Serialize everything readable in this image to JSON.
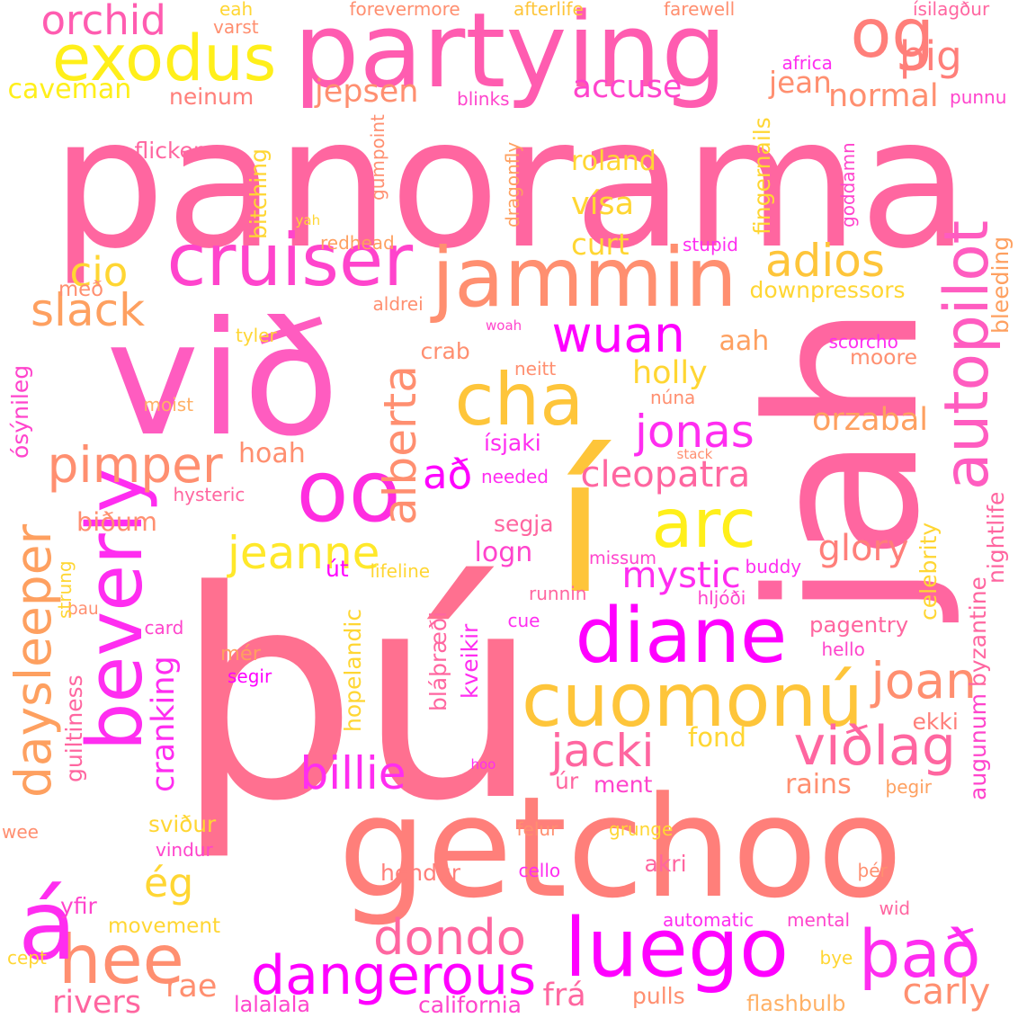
{
  "palette": {
    "pink": "#ff66a0",
    "salmon": "#ff7f7a",
    "coral": "#ff8f70",
    "orange": "#fea060",
    "amber": "#fec53a",
    "gold": "#ffd633",
    "yellow": "#ffef1a",
    "magenta": "#ff2df0",
    "violet": "#ff00ff",
    "hotpink": "#ff4dcc",
    "peach": "#ffb065"
  },
  "words": [
    {
      "text": "panorama",
      "color": "#ff66a0",
      "v": false
    },
    {
      "text": "þú",
      "color": "#ff7090",
      "v": false
    },
    {
      "text": "getchoo",
      "color": "#ff7f7a",
      "v": false
    },
    {
      "text": "við",
      "color": "#ff5cc0",
      "v": false
    },
    {
      "text": "jah",
      "color": "#ff66a0",
      "v": true
    },
    {
      "text": "partying",
      "color": "#ff5cb0",
      "v": false
    },
    {
      "text": "í",
      "color": "#fec53a",
      "v": false
    },
    {
      "text": "og",
      "color": "#ff7f7a",
      "v": false
    },
    {
      "text": "jammin",
      "color": "#ff8f70",
      "v": false
    },
    {
      "text": "exodus",
      "color": "#ffef1a",
      "v": false
    },
    {
      "text": "cruiser",
      "color": "#ff44cc",
      "v": false
    },
    {
      "text": "oo",
      "color": "#ff2de0",
      "v": false
    },
    {
      "text": "beverly",
      "color": "#ff2df0",
      "v": true
    },
    {
      "text": "cha",
      "color": "#fec53a",
      "v": false
    },
    {
      "text": "arc",
      "color": "#ffef1a",
      "v": false
    },
    {
      "text": "diane",
      "color": "#ff00ff",
      "v": false
    },
    {
      "text": "cuomonú",
      "color": "#fec53a",
      "v": false
    },
    {
      "text": "luego",
      "color": "#ff00ff",
      "v": false
    },
    {
      "text": "autopilot",
      "color": "#ff5cc0",
      "v": true
    },
    {
      "text": "hee",
      "color": "#ff8f70",
      "v": false
    },
    {
      "text": "á",
      "color": "#ff2df0",
      "v": false
    },
    {
      "text": "það",
      "color": "#ff2df0",
      "v": false
    },
    {
      "text": "dangerous",
      "color": "#ff00ff",
      "v": false
    },
    {
      "text": "dondo",
      "color": "#ff66a0",
      "v": false
    },
    {
      "text": "viðlag",
      "color": "#ff66a0",
      "v": false
    },
    {
      "text": "billie",
      "color": "#ff2df0",
      "v": false
    },
    {
      "text": "jacki",
      "color": "#ff66a0",
      "v": false
    },
    {
      "text": "joan",
      "color": "#ff8f70",
      "v": false
    },
    {
      "text": "pimper",
      "color": "#ff8f70",
      "v": false
    },
    {
      "text": "jonas",
      "color": "#ff2df0",
      "v": false
    },
    {
      "text": "wuan",
      "color": "#ff00ff",
      "v": false
    },
    {
      "text": "jeanne",
      "color": "#ffe82a",
      "v": false
    },
    {
      "text": "alberta",
      "color": "#ff8f70",
      "v": true
    },
    {
      "text": "adios",
      "color": "#fec53a",
      "v": false
    },
    {
      "text": "daysleeper",
      "color": "#fea060",
      "v": true
    },
    {
      "text": "slack",
      "color": "#fea060",
      "v": false
    },
    {
      "text": "orchid",
      "color": "#ff5cb0",
      "v": false
    },
    {
      "text": "cio",
      "color": "#ffd633",
      "v": false
    },
    {
      "text": "þig",
      "color": "#ff7f7a",
      "v": false
    },
    {
      "text": "caveman",
      "color": "#ffef1a",
      "v": false
    },
    {
      "text": "jepsen",
      "color": "#ff8f70",
      "v": false
    },
    {
      "text": "accuse",
      "color": "#ff44cc",
      "v": false
    },
    {
      "text": "jean",
      "color": "#ff8f70",
      "v": false
    },
    {
      "text": "normal",
      "color": "#ff8f70",
      "v": false
    },
    {
      "text": "neinum",
      "color": "#ff7f7a",
      "v": false
    },
    {
      "text": "blinks",
      "color": "#ff44cc",
      "v": false
    },
    {
      "text": "punnu",
      "color": "#ff44cc",
      "v": false
    },
    {
      "text": "eah",
      "color": "#ffd633",
      "v": false
    },
    {
      "text": "varst",
      "color": "#ff8f70",
      "v": false
    },
    {
      "text": "forevermore",
      "color": "#ff8f70",
      "v": false
    },
    {
      "text": "afterlife",
      "color": "#fec53a",
      "v": false
    },
    {
      "text": "farewell",
      "color": "#ff8f70",
      "v": false
    },
    {
      "text": "ísilagður",
      "color": "#ff66a0",
      "v": false
    },
    {
      "text": "africa",
      "color": "#ff2df0",
      "v": false
    },
    {
      "text": "flicker",
      "color": "#ff66a0",
      "v": false
    },
    {
      "text": "roland",
      "color": "#ffd633",
      "v": false
    },
    {
      "text": "vísa",
      "color": "#ffd633",
      "v": false
    },
    {
      "text": "curt",
      "color": "#ffd633",
      "v": false
    },
    {
      "text": "stupid",
      "color": "#ff2df0",
      "v": false
    },
    {
      "text": "redhead",
      "color": "#fea060",
      "v": false
    },
    {
      "text": "yah",
      "color": "#ffd633",
      "v": false
    },
    {
      "text": "downpressors",
      "color": "#ffd633",
      "v": false
    },
    {
      "text": "með",
      "color": "#ff8f70",
      "v": false
    },
    {
      "text": "aldrei",
      "color": "#ff8f70",
      "v": false
    },
    {
      "text": "tyler",
      "color": "#ffd633",
      "v": false
    },
    {
      "text": "woah",
      "color": "#ff44cc",
      "v": false
    },
    {
      "text": "crab",
      "color": "#ff8f70",
      "v": false
    },
    {
      "text": "aah",
      "color": "#fea060",
      "v": false
    },
    {
      "text": "scorcho",
      "color": "#ff2df0",
      "v": false
    },
    {
      "text": "moore",
      "color": "#ff8f70",
      "v": false
    },
    {
      "text": "holly",
      "color": "#ffd633",
      "v": false
    },
    {
      "text": "neitt",
      "color": "#ff8f70",
      "v": false
    },
    {
      "text": "moist",
      "color": "#ffb065",
      "v": false
    },
    {
      "text": "núna",
      "color": "#ff8f70",
      "v": false
    },
    {
      "text": "orzabal",
      "color": "#fea060",
      "v": false
    },
    {
      "text": "ísjaki",
      "color": "#ff2df0",
      "v": false
    },
    {
      "text": "hoah",
      "color": "#ff8f70",
      "v": false
    },
    {
      "text": "stack",
      "color": "#ff8f70",
      "v": false
    },
    {
      "text": "að",
      "color": "#ff00ff",
      "v": false
    },
    {
      "text": "needed",
      "color": "#ff2df0",
      "v": false
    },
    {
      "text": "cleopatra",
      "color": "#ff66a0",
      "v": false
    },
    {
      "text": "hysteric",
      "color": "#ff66a0",
      "v": false
    },
    {
      "text": "biðum",
      "color": "#ff8f70",
      "v": false
    },
    {
      "text": "segja",
      "color": "#ff66a0",
      "v": false
    },
    {
      "text": "glory",
      "color": "#ff7f7a",
      "v": false
    },
    {
      "text": "logn",
      "color": "#ff44cc",
      "v": false
    },
    {
      "text": "missum",
      "color": "#ff44cc",
      "v": false
    },
    {
      "text": "út",
      "color": "#ff00ff",
      "v": false
    },
    {
      "text": "lifeline",
      "color": "#ffd633",
      "v": false
    },
    {
      "text": "mystic",
      "color": "#ff2df0",
      "v": false
    },
    {
      "text": "buddy",
      "color": "#ff2df0",
      "v": false
    },
    {
      "text": "runnin",
      "color": "#ff66a0",
      "v": false
    },
    {
      "text": "hljóði",
      "color": "#ff44cc",
      "v": false
    },
    {
      "text": "þau",
      "color": "#ff8f70",
      "v": false
    },
    {
      "text": "card",
      "color": "#ff44cc",
      "v": false
    },
    {
      "text": "cue",
      "color": "#ff2df0",
      "v": false
    },
    {
      "text": "pagentry",
      "color": "#ff66a0",
      "v": false
    },
    {
      "text": "hello",
      "color": "#ff44cc",
      "v": false
    },
    {
      "text": "mér",
      "color": "#fea060",
      "v": false
    },
    {
      "text": "segir",
      "color": "#ff00ff",
      "v": false
    },
    {
      "text": "ekki",
      "color": "#ff7f7a",
      "v": false
    },
    {
      "text": "fond",
      "color": "#ffd633",
      "v": false
    },
    {
      "text": "hoo",
      "color": "#ff2df0",
      "v": false
    },
    {
      "text": "úr",
      "color": "#ff66a0",
      "v": false
    },
    {
      "text": "ment",
      "color": "#ff44cc",
      "v": false
    },
    {
      "text": "rains",
      "color": "#ff8f70",
      "v": false
    },
    {
      "text": "þegir",
      "color": "#fea060",
      "v": false
    },
    {
      "text": "wee",
      "color": "#ff8f70",
      "v": false
    },
    {
      "text": "sviður",
      "color": "#ffd633",
      "v": false
    },
    {
      "text": "vindur",
      "color": "#ff44cc",
      "v": false
    },
    {
      "text": "felur",
      "color": "#ff8f70",
      "v": false
    },
    {
      "text": "grunge",
      "color": "#ffd633",
      "v": false
    },
    {
      "text": "hendur",
      "color": "#ff7f7a",
      "v": false
    },
    {
      "text": "cello",
      "color": "#ff2df0",
      "v": false
    },
    {
      "text": "akri",
      "color": "#ff66a0",
      "v": false
    },
    {
      "text": "þér",
      "color": "#ff8f70",
      "v": false
    },
    {
      "text": "yfir",
      "color": "#ff44cc",
      "v": false
    },
    {
      "text": "ég",
      "color": "#ffd633",
      "v": false
    },
    {
      "text": "movement",
      "color": "#ffd633",
      "v": false
    },
    {
      "text": "automatic",
      "color": "#ff2df0",
      "v": false
    },
    {
      "text": "mental",
      "color": "#ff44cc",
      "v": false
    },
    {
      "text": "wid",
      "color": "#ff66a0",
      "v": false
    },
    {
      "text": "cept",
      "color": "#ffd633",
      "v": false
    },
    {
      "text": "bye",
      "color": "#ffd633",
      "v": false
    },
    {
      "text": "rae",
      "color": "#ff8f70",
      "v": false
    },
    {
      "text": "rivers",
      "color": "#ff66a0",
      "v": false
    },
    {
      "text": "frá",
      "color": "#ff66a0",
      "v": false
    },
    {
      "text": "pulls",
      "color": "#ff8f70",
      "v": false
    },
    {
      "text": "flashbulb",
      "color": "#ffb065",
      "v": false
    },
    {
      "text": "carly",
      "color": "#ff8f70",
      "v": false
    },
    {
      "text": "lalalala",
      "color": "#ff44cc",
      "v": false
    },
    {
      "text": "california",
      "color": "#ff44cc",
      "v": false
    },
    {
      "text": "gumpoint",
      "color": "#ff8f70",
      "v": true
    },
    {
      "text": "bitching",
      "color": "#ffd633",
      "v": true
    },
    {
      "text": "dragonfly",
      "color": "#fea060",
      "v": true
    },
    {
      "text": "fingernails",
      "color": "#ffd633",
      "v": true
    },
    {
      "text": "goddamn",
      "color": "#ff44cc",
      "v": true
    },
    {
      "text": "bleeding",
      "color": "#fea060",
      "v": true
    },
    {
      "text": "ósýnileg",
      "color": "#ff44cc",
      "v": true
    },
    {
      "text": "strung",
      "color": "#ffd633",
      "v": true
    },
    {
      "text": "cranking",
      "color": "#ff2df0",
      "v": true
    },
    {
      "text": "guiltiness",
      "color": "#ff66a0",
      "v": true
    },
    {
      "text": "hopelandic",
      "color": "#ffd633",
      "v": true
    },
    {
      "text": "bláþræði",
      "color": "#ff66a0",
      "v": true
    },
    {
      "text": "kveikir",
      "color": "#ff2df0",
      "v": true
    },
    {
      "text": "byzantine",
      "color": "#ff66a0",
      "v": true
    },
    {
      "text": "augunum",
      "color": "#ff44cc",
      "v": true
    },
    {
      "text": "nightlife",
      "color": "#ff66a0",
      "v": true
    },
    {
      "text": "celebrity",
      "color": "#ffd633",
      "v": true
    }
  ]
}
